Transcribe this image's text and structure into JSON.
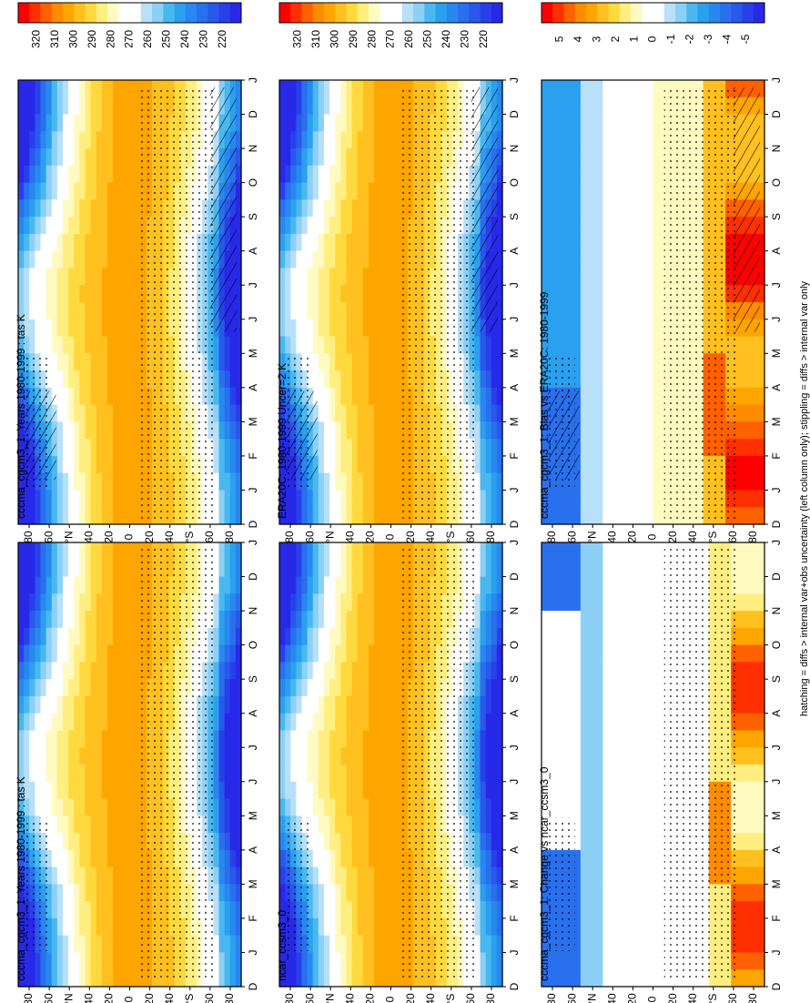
{
  "chart_data": [
    {
      "id": "p1",
      "type": "heatmap",
      "title": "cccma_cgcm3_1: Years 1980-1999 : tas K",
      "field": "abs",
      "hatch": true
    },
    {
      "id": "p2",
      "type": "heatmap",
      "title": "ERA20C: 1980-1999 Uncer=2 K",
      "field": "abs",
      "hatch": true
    },
    {
      "id": "p3",
      "type": "heatmap",
      "title": "cccma_cgcm3_1: Bias vs ERA20C: 1980-1999",
      "field": "bias",
      "hatch": true
    },
    {
      "id": "p4",
      "type": "heatmap",
      "title": "cccma_cgcm3_1: Years 1980-1999 : tas K",
      "field": "abs",
      "hatch": false
    },
    {
      "id": "p5",
      "type": "heatmap",
      "title": "ncar_ccsm3_0",
      "field": "abs",
      "hatch": false
    },
    {
      "id": "p6",
      "type": "heatmap",
      "title": "cccma_cgcm3_1: Change vs ncar_ccsm3_0",
      "field": "diff",
      "hatch": false
    }
  ],
  "axes": {
    "months": [
      "D",
      "J",
      "F",
      "M",
      "A",
      "M",
      "J",
      "J",
      "A",
      "S",
      "O",
      "N",
      "D",
      "J"
    ],
    "lat_ticks": [
      "80",
      "60",
      "N",
      "40",
      "20",
      "0",
      "20",
      "40",
      "S",
      "60",
      "80"
    ],
    "lat_values": [
      80,
      60,
      40,
      20,
      0,
      -20,
      -40,
      -60,
      -80
    ],
    "hemisphere_labels": {
      "north": "°N",
      "south": "°S"
    }
  },
  "colorbars": {
    "abs": {
      "labels": [
        "320",
        "310",
        "300",
        "290",
        "280",
        "270",
        "260",
        "250",
        "240",
        "230",
        "220"
      ],
      "colors": [
        "#ff0000",
        "#ff3000",
        "#ff6000",
        "#ff8c00",
        "#ffa500",
        "#ffc020",
        "#ffd93d",
        "#ffee80",
        "#fffac0",
        "#ffffff",
        "#ffffff",
        "#b8e0f8",
        "#8dd0f5",
        "#4ab8f0",
        "#2aa0ef",
        "#2888ef",
        "#2870ee",
        "#2858ec",
        "#2840ea",
        "#2828e8"
      ]
    },
    "diff": {
      "labels": [
        "5",
        "4",
        "3",
        "2",
        "1",
        "0",
        "-1",
        "-2",
        "-3",
        "-4",
        "-5"
      ],
      "colors": [
        "#ff0000",
        "#ff3000",
        "#ff6000",
        "#ff8c00",
        "#ffa500",
        "#ffc020",
        "#ffd93d",
        "#ffee80",
        "#fffac0",
        "#ffffff",
        "#ffffff",
        "#b8e0f8",
        "#8dd0f5",
        "#4ab8f0",
        "#2aa0ef",
        "#2888ef",
        "#2870ee",
        "#2858ec",
        "#2840ea",
        "#2828e8"
      ]
    }
  },
  "footer": "hatching = diffs > internal var+obs uncertainty (left column only); stippling = diffs > internal var only"
}
